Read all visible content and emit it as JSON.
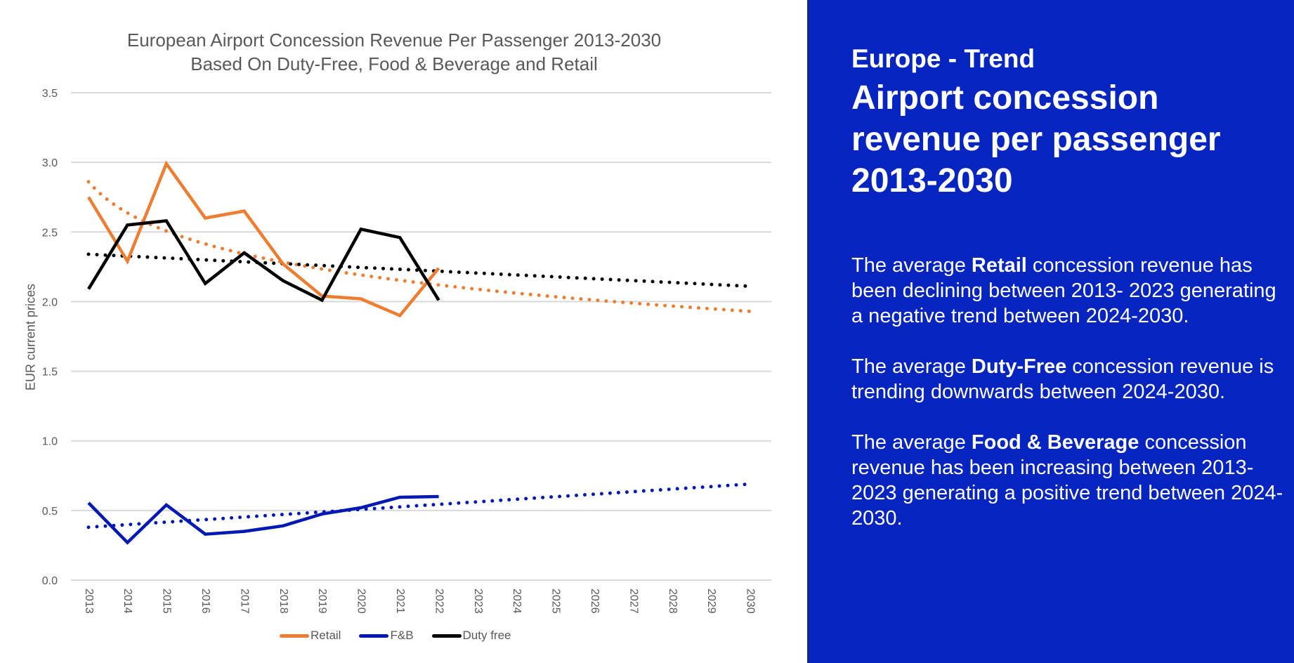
{
  "chart_data": {
    "type": "line",
    "title": "European Airport Concession Revenue Per Passenger 2013-2030",
    "subtitle": "Based On Duty-Free, Food & Beverage and Retail",
    "xlabel": "",
    "ylabel": "EUR current prices",
    "ylim": [
      0,
      3.5
    ],
    "yticks": [
      "0.0",
      "0.5",
      "1.0",
      "1.5",
      "2.0",
      "2.5",
      "3.0",
      "3.5"
    ],
    "ytick_values": [
      0,
      0.5,
      1.0,
      1.5,
      2.0,
      2.5,
      3.0,
      3.5
    ],
    "grid": true,
    "legend_position": "bottom",
    "x": [
      "2013",
      "2014",
      "2015",
      "2016",
      "2017",
      "2018",
      "2019",
      "2020",
      "2021",
      "2022",
      "2023",
      "2024",
      "2025",
      "2026",
      "2027",
      "2028",
      "2029",
      "2030"
    ],
    "series": [
      {
        "name": "Retail",
        "color": "#ED7D31",
        "values": [
          2.75,
          2.29,
          2.99,
          2.6,
          2.65,
          2.27,
          2.04,
          2.02,
          1.9,
          2.24
        ]
      },
      {
        "name": "F&B",
        "color": "#0019B4",
        "values": [
          0.555,
          0.27,
          0.54,
          0.33,
          0.35,
          0.39,
          0.475,
          0.52,
          0.595,
          0.6
        ]
      },
      {
        "name": "Duty free",
        "color": "#000000",
        "values": [
          2.09,
          2.55,
          2.58,
          2.13,
          2.35,
          2.15,
          2.01,
          2.52,
          2.46,
          2.01
        ]
      }
    ],
    "trendlines": [
      {
        "series": "Retail",
        "kind": "logarithmic",
        "color": "#ED7D31",
        "start_value": 2.86,
        "end_value": 1.93
      },
      {
        "series": "F&B",
        "kind": "linear",
        "color": "#0019B4",
        "start_value": 0.38,
        "end_value": 0.69
      },
      {
        "series": "Duty free",
        "kind": "linear",
        "color": "#000000",
        "start_value": 2.34,
        "end_value": 2.11
      }
    ]
  },
  "legend": [
    {
      "label": "Retail",
      "color": "#ED7D31"
    },
    {
      "label": "F&B",
      "color": "#0019B4"
    },
    {
      "label": "Duty free",
      "color": "#000000"
    }
  ],
  "panel": {
    "background": "#0524C0",
    "kicker": "Europe - Trend",
    "title": "Airport concession revenue per passenger 2013-2030",
    "paragraphs": [
      {
        "before": "The average ",
        "bold": "Retail",
        "after": " concession revenue has been declining between 2013- 2023 generating a negative trend between 2024-2030."
      },
      {
        "before": "The average ",
        "bold": "Duty-Free",
        "after": " concession revenue is trending downwards between 2024-2030."
      },
      {
        "before": "The average ",
        "bold": "Food & Beverage",
        "after": " concession revenue has been increasing between 2013-2023 generating a positive trend between 2024-2030."
      }
    ]
  }
}
